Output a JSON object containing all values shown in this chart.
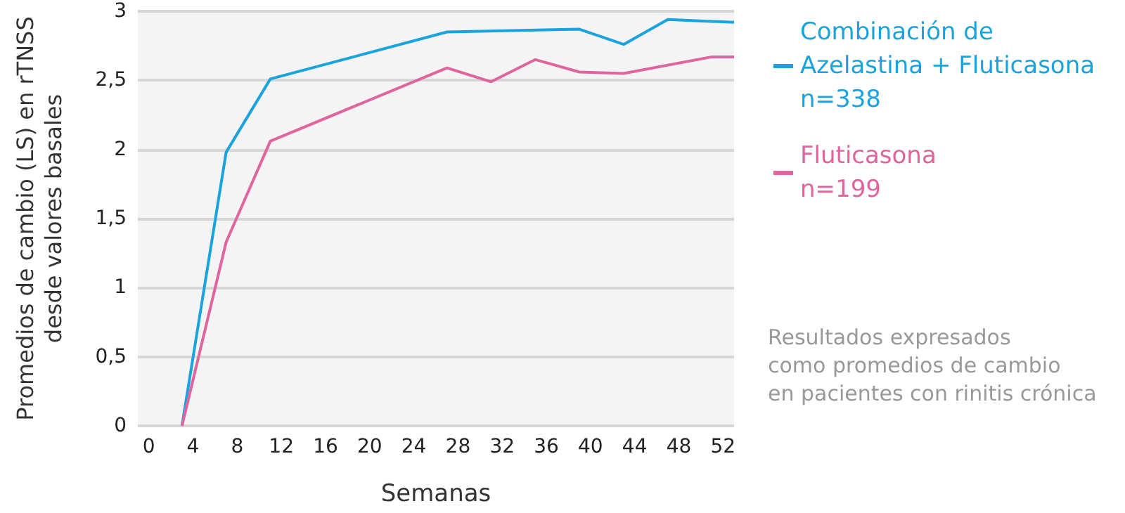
{
  "chart_data": {
    "type": "line",
    "xlabel": "Semanas",
    "ylabel": "Promedios de cambio (LS) en rTNSS\ndesde valores basales",
    "xlim": [
      -1,
      53
    ],
    "xticks": [
      0,
      4,
      8,
      12,
      16,
      20,
      24,
      28,
      32,
      36,
      40,
      44,
      48,
      52
    ],
    "ylim": [
      0,
      3
    ],
    "yticks": [
      0,
      {
        "value": 0.5,
        "label": "0,5"
      },
      1,
      {
        "value": 1.5,
        "label": "1,5"
      },
      2,
      {
        "value": 2.5,
        "label": "2,5"
      },
      3
    ],
    "grid": "y",
    "legend": "top right",
    "marker": "none",
    "line_style": "solid",
    "annotations": [
      "Resultados expresados\ncomo promedios de cambio\nen pacientes con rinitis crónica"
    ],
    "series": [
      {
        "name": "Combinación de\nAzelastina + Fluticasona\nn=338",
        "color": "#1aa3dc",
        "x": [
          3,
          7,
          11,
          27,
          39,
          43,
          47,
          53
        ],
        "values": [
          0,
          1.98,
          2.51,
          2.85,
          2.87,
          2.76,
          2.94,
          2.92
        ]
      },
      {
        "name": "Fluticasona\nn=199",
        "color": "#e0649e",
        "x": [
          3,
          7,
          11,
          27,
          31,
          35,
          39,
          43,
          51,
          53
        ],
        "values": [
          0,
          1.33,
          2.06,
          2.59,
          2.49,
          2.65,
          2.56,
          2.55,
          2.67,
          2.67
        ]
      }
    ]
  }
}
